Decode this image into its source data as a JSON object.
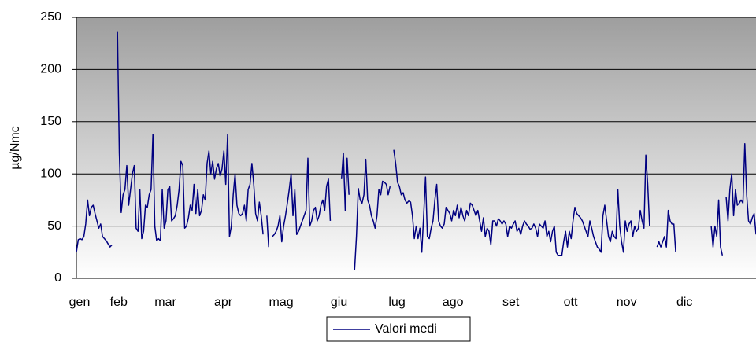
{
  "chart_data": {
    "type": "line",
    "y_label": "µg/Nmc",
    "ylim": [
      0,
      250
    ],
    "yticks": [
      0,
      50,
      100,
      150,
      200,
      250
    ],
    "grid": true,
    "legend": "bottom",
    "categories": [
      "gen",
      null,
      null,
      null,
      null,
      null,
      null,
      null,
      null,
      null,
      null,
      null,
      null,
      null,
      null,
      null,
      null,
      null,
      null,
      null,
      null,
      "feb",
      null,
      null,
      null,
      null,
      null,
      null,
      null,
      null,
      null,
      null,
      null,
      null,
      null,
      null,
      null,
      null,
      null,
      null,
      null,
      null,
      null,
      null,
      null,
      null,
      "mar",
      null,
      null,
      null,
      null,
      null,
      null,
      null,
      null,
      null,
      null,
      null,
      null,
      null,
      null,
      null,
      null,
      null,
      null,
      null,
      null,
      null,
      null,
      null,
      null,
      null,
      null,
      null,
      null,
      null,
      null,
      "apr",
      null,
      null,
      null,
      null,
      null,
      null,
      null,
      null,
      null,
      null,
      null,
      null,
      null,
      null,
      null,
      null,
      null,
      null,
      null,
      null,
      null,
      null,
      null,
      null,
      null,
      null,
      null,
      null,
      null,
      null,
      "mag",
      null,
      null,
      null,
      null,
      null,
      null,
      null,
      null,
      null,
      null,
      null,
      null,
      null,
      null,
      null,
      null,
      null,
      null,
      null,
      null,
      null,
      null,
      null,
      null,
      null,
      null,
      null,
      null,
      null,
      null,
      "giu",
      null,
      null,
      null,
      null,
      null,
      null,
      null,
      null,
      null,
      null,
      null,
      null,
      null,
      null,
      null,
      null,
      null,
      null,
      null,
      null,
      null,
      null,
      null,
      null,
      null,
      null,
      null,
      null,
      null,
      null,
      "lug",
      null,
      null,
      null,
      null,
      null,
      null,
      null,
      null,
      null,
      null,
      null,
      null,
      null,
      null,
      null,
      null,
      null,
      null,
      null,
      null,
      null,
      null,
      null,
      null,
      null,
      null,
      null,
      null,
      null,
      "ago",
      null,
      null,
      null,
      null,
      null,
      null,
      null,
      null,
      null,
      null,
      null,
      null,
      null,
      null,
      null,
      null,
      null,
      null,
      null,
      null,
      null,
      null,
      null,
      null,
      null,
      null,
      null,
      null,
      null,
      null,
      "set",
      null,
      null,
      null,
      null,
      null,
      null,
      null,
      null,
      null,
      null,
      null,
      null,
      null,
      null,
      null,
      null,
      null,
      null,
      null,
      null,
      null,
      null,
      null,
      null,
      null,
      null,
      null,
      null,
      null,
      null,
      null,
      "ott",
      null,
      null,
      null,
      null,
      null,
      null,
      null,
      null,
      null,
      null,
      null,
      null,
      null,
      null,
      null,
      null,
      null,
      null,
      null,
      null,
      null,
      null,
      null,
      null,
      null,
      null,
      null,
      null,
      null,
      "nov",
      null,
      null,
      null,
      null,
      null,
      null,
      null,
      null,
      null,
      null,
      null,
      null,
      null,
      null,
      null,
      null,
      null,
      null,
      null,
      null,
      null,
      null,
      null,
      null,
      null,
      null,
      null,
      null,
      null,
      null,
      "dic",
      null,
      null,
      null,
      null,
      null,
      null,
      null,
      null,
      null,
      null,
      null,
      null,
      null,
      null,
      null,
      null,
      null,
      null,
      null,
      null,
      null,
      null,
      null,
      null,
      null,
      null,
      null,
      null,
      null,
      null,
      null,
      null,
      null,
      null,
      null,
      null,
      null,
      null,
      null,
      null
    ],
    "series": [
      {
        "name": "Valori medi",
        "color": "#000080",
        "values": [
          25,
          37,
          38,
          37,
          40,
          52,
          75,
          60,
          68,
          70,
          62,
          55,
          48,
          52,
          40,
          38,
          36,
          33,
          30,
          32,
          null,
          null,
          236,
          120,
          63,
          80,
          85,
          108,
          70,
          85,
          100,
          108,
          48,
          45,
          85,
          38,
          45,
          70,
          68,
          80,
          85,
          138,
          50,
          36,
          38,
          36,
          85,
          48,
          55,
          85,
          88,
          55,
          57,
          60,
          70,
          85,
          112,
          108,
          48,
          50,
          58,
          70,
          65,
          90,
          62,
          85,
          60,
          65,
          80,
          75,
          110,
          122,
          100,
          112,
          95,
          105,
          110,
          98,
          105,
          122,
          90,
          138,
          40,
          50,
          80,
          100,
          70,
          62,
          60,
          62,
          70,
          55,
          85,
          90,
          110,
          90,
          62,
          55,
          73,
          60,
          42,
          null,
          60,
          30,
          null,
          40,
          42,
          45,
          50,
          60,
          35,
          50,
          60,
          72,
          85,
          100,
          60,
          85,
          42,
          45,
          50,
          55,
          60,
          65,
          115,
          50,
          55,
          65,
          68,
          55,
          60,
          70,
          75,
          65,
          88,
          95,
          55,
          null,
          null,
          null,
          null,
          null,
          95,
          120,
          65,
          115,
          80,
          null,
          null,
          8,
          40,
          86,
          75,
          72,
          80,
          114,
          75,
          70,
          60,
          55,
          48,
          60,
          85,
          80,
          93,
          92,
          90,
          80,
          88,
          null,
          123,
          110,
          92,
          88,
          80,
          82,
          75,
          72,
          74,
          73,
          60,
          38,
          50,
          38,
          48,
          25,
          60,
          97,
          40,
          38,
          48,
          55,
          75,
          90,
          55,
          50,
          48,
          52,
          68,
          65,
          62,
          55,
          65,
          60,
          70,
          58,
          68,
          60,
          55,
          65,
          60,
          72,
          70,
          65,
          60,
          65,
          55,
          45,
          58,
          40,
          48,
          45,
          32,
          55,
          55,
          50,
          57,
          55,
          52,
          55,
          52,
          40,
          50,
          48,
          52,
          55,
          45,
          48,
          42,
          50,
          55,
          52,
          50,
          47,
          48,
          52,
          48,
          40,
          52,
          50,
          48,
          55,
          40,
          45,
          35,
          45,
          50,
          25,
          22,
          22,
          22,
          35,
          45,
          30,
          45,
          38,
          55,
          68,
          62,
          60,
          58,
          55,
          50,
          45,
          40,
          55,
          48,
          40,
          35,
          30,
          28,
          25,
          60,
          70,
          55,
          40,
          35,
          45,
          40,
          38,
          85,
          50,
          35,
          25,
          55,
          45,
          52,
          55,
          40,
          50,
          45,
          48,
          65,
          55,
          48,
          118,
          90,
          50,
          null,
          null,
          null,
          30,
          35,
          30,
          35,
          40,
          30,
          65,
          55,
          52,
          52,
          25,
          null,
          null,
          null,
          null,
          null,
          null,
          null,
          null,
          null,
          null,
          null,
          null,
          null,
          null,
          null,
          null,
          null,
          null,
          50,
          30,
          50,
          40,
          75,
          30,
          22,
          null,
          78,
          55,
          85,
          100,
          60,
          85,
          70,
          72,
          75,
          72,
          129,
          80,
          55,
          52,
          58,
          62,
          42
        ]
      }
    ]
  }
}
